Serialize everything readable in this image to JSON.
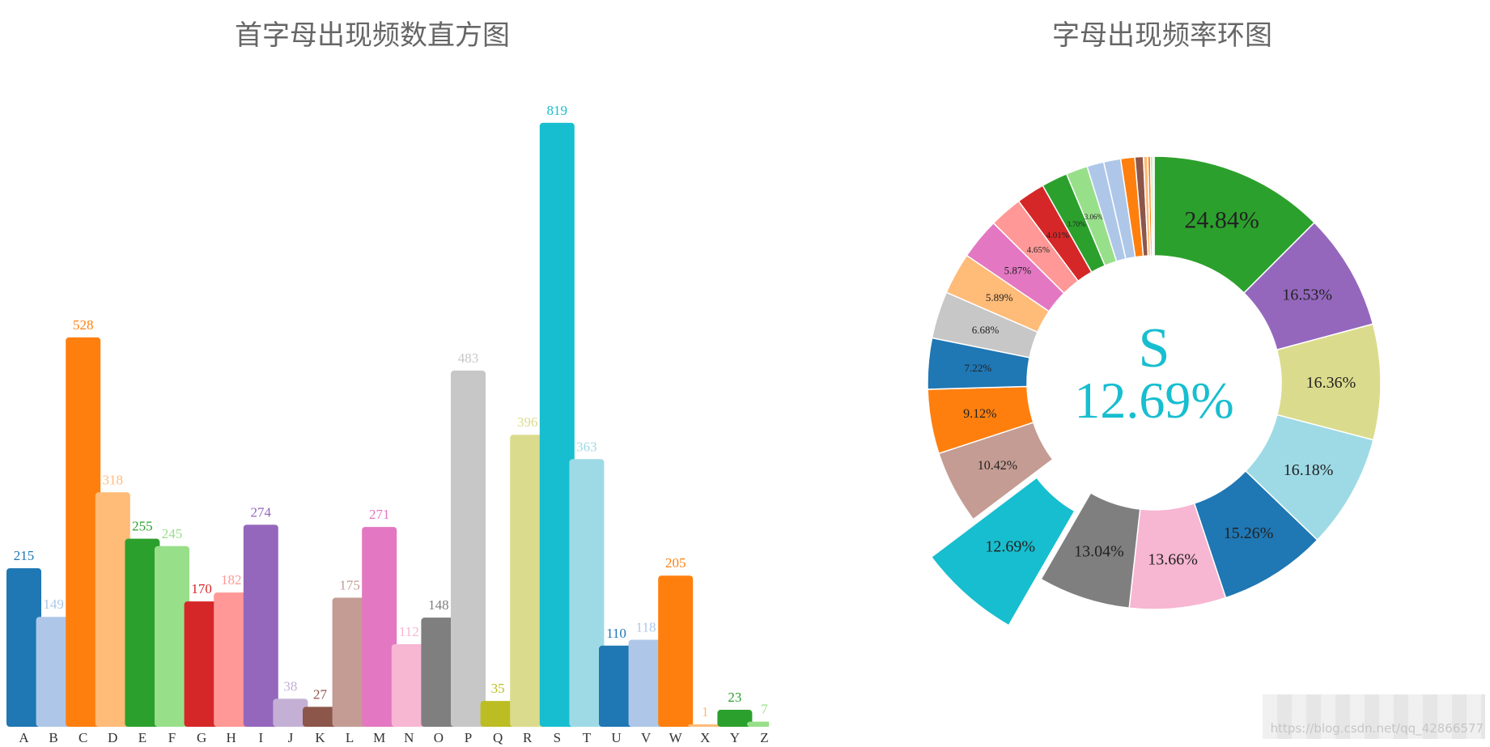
{
  "chart_data": [
    {
      "type": "bar",
      "title": "首字母出现频数直方图",
      "categories": [
        "A",
        "B",
        "C",
        "D",
        "E",
        "F",
        "G",
        "H",
        "I",
        "J",
        "K",
        "L",
        "M",
        "N",
        "O",
        "P",
        "Q",
        "R",
        "S",
        "T",
        "U",
        "V",
        "W",
        "X",
        "Y",
        "Z"
      ],
      "values": [
        215,
        149,
        528,
        318,
        255,
        245,
        170,
        182,
        274,
        38,
        27,
        175,
        271,
        112,
        148,
        483,
        35,
        396,
        819,
        363,
        110,
        118,
        205,
        1,
        23,
        7
      ],
      "ylim": [
        0,
        900
      ],
      "grid": false,
      "legend": "none",
      "colors": [
        "#1f77b4",
        "#aec7e8",
        "#ff7f0e",
        "#ffbb78",
        "#2ca02c",
        "#98df8a",
        "#d62728",
        "#ff9896",
        "#9467bd",
        "#c5b0d5",
        "#8c564b",
        "#c49c94",
        "#e377c2",
        "#f7b6d2",
        "#7f7f7f",
        "#c7c7c7",
        "#bcbd22",
        "#dbdb8d",
        "#17becf",
        "#9edae5",
        "#1f77b4",
        "#aec7e8",
        "#ff7f0e",
        "#ffbb78",
        "#2ca02c",
        "#98df8a"
      ]
    },
    {
      "type": "pie",
      "title": "字母出现频率环图",
      "center_label": "S",
      "center_value": "12.69%",
      "highlighted_slice": "12.69%",
      "slices": [
        {
          "value": 24.84,
          "label": "24.84%",
          "color": "#2ca02c"
        },
        {
          "value": 16.53,
          "label": "16.53%",
          "color": "#9467bd"
        },
        {
          "value": 16.36,
          "label": "16.36%",
          "color": "#dbdb8d"
        },
        {
          "value": 16.18,
          "label": "16.18%",
          "color": "#9edae5"
        },
        {
          "value": 15.26,
          "label": "15.26%",
          "color": "#1f77b4"
        },
        {
          "value": 13.66,
          "label": "13.66%",
          "color": "#f7b6d2"
        },
        {
          "value": 13.04,
          "label": "13.04%",
          "color": "#7f7f7f"
        },
        {
          "value": 12.69,
          "label": "12.69%",
          "color": "#17becf"
        },
        {
          "value": 10.42,
          "label": "10.42%",
          "color": "#c49c94"
        },
        {
          "value": 9.12,
          "label": "9.12%",
          "color": "#ff7f0e"
        },
        {
          "value": 7.22,
          "label": "7.22%",
          "color": "#1f77b4"
        },
        {
          "value": 6.68,
          "label": "6.68%",
          "color": "#c7c7c7"
        },
        {
          "value": 5.89,
          "label": "5.89%",
          "color": "#ffbb78"
        },
        {
          "value": 5.87,
          "label": "5.87%",
          "color": "#e377c2"
        },
        {
          "value": 4.65,
          "label": "4.65%",
          "color": "#ff9896"
        },
        {
          "value": 4.01,
          "label": "4.01%",
          "color": "#d62728"
        },
        {
          "value": 3.7,
          "label": "3.70%",
          "color": "#2ca02c"
        },
        {
          "value": 3.06,
          "label": "3.06%",
          "color": "#98df8a"
        },
        {
          "value": 2.4,
          "label": "",
          "color": "#aec7e8"
        },
        {
          "value": 2.4,
          "label": "",
          "color": "#aec7e8"
        },
        {
          "value": 2.0,
          "label": "",
          "color": "#ff7f0e"
        },
        {
          "value": 1.2,
          "label": "",
          "color": "#8c564b"
        },
        {
          "value": 0.6,
          "label": "",
          "color": "#ffbb78"
        },
        {
          "value": 0.4,
          "label": "",
          "color": "#ff7f0e"
        },
        {
          "value": 0.3,
          "label": "",
          "color": "#98df8a"
        },
        {
          "value": 0.2,
          "label": "",
          "color": "#c5b0d5"
        }
      ]
    }
  ],
  "watermark": "https://blog.csdn.net/qq_42866577"
}
